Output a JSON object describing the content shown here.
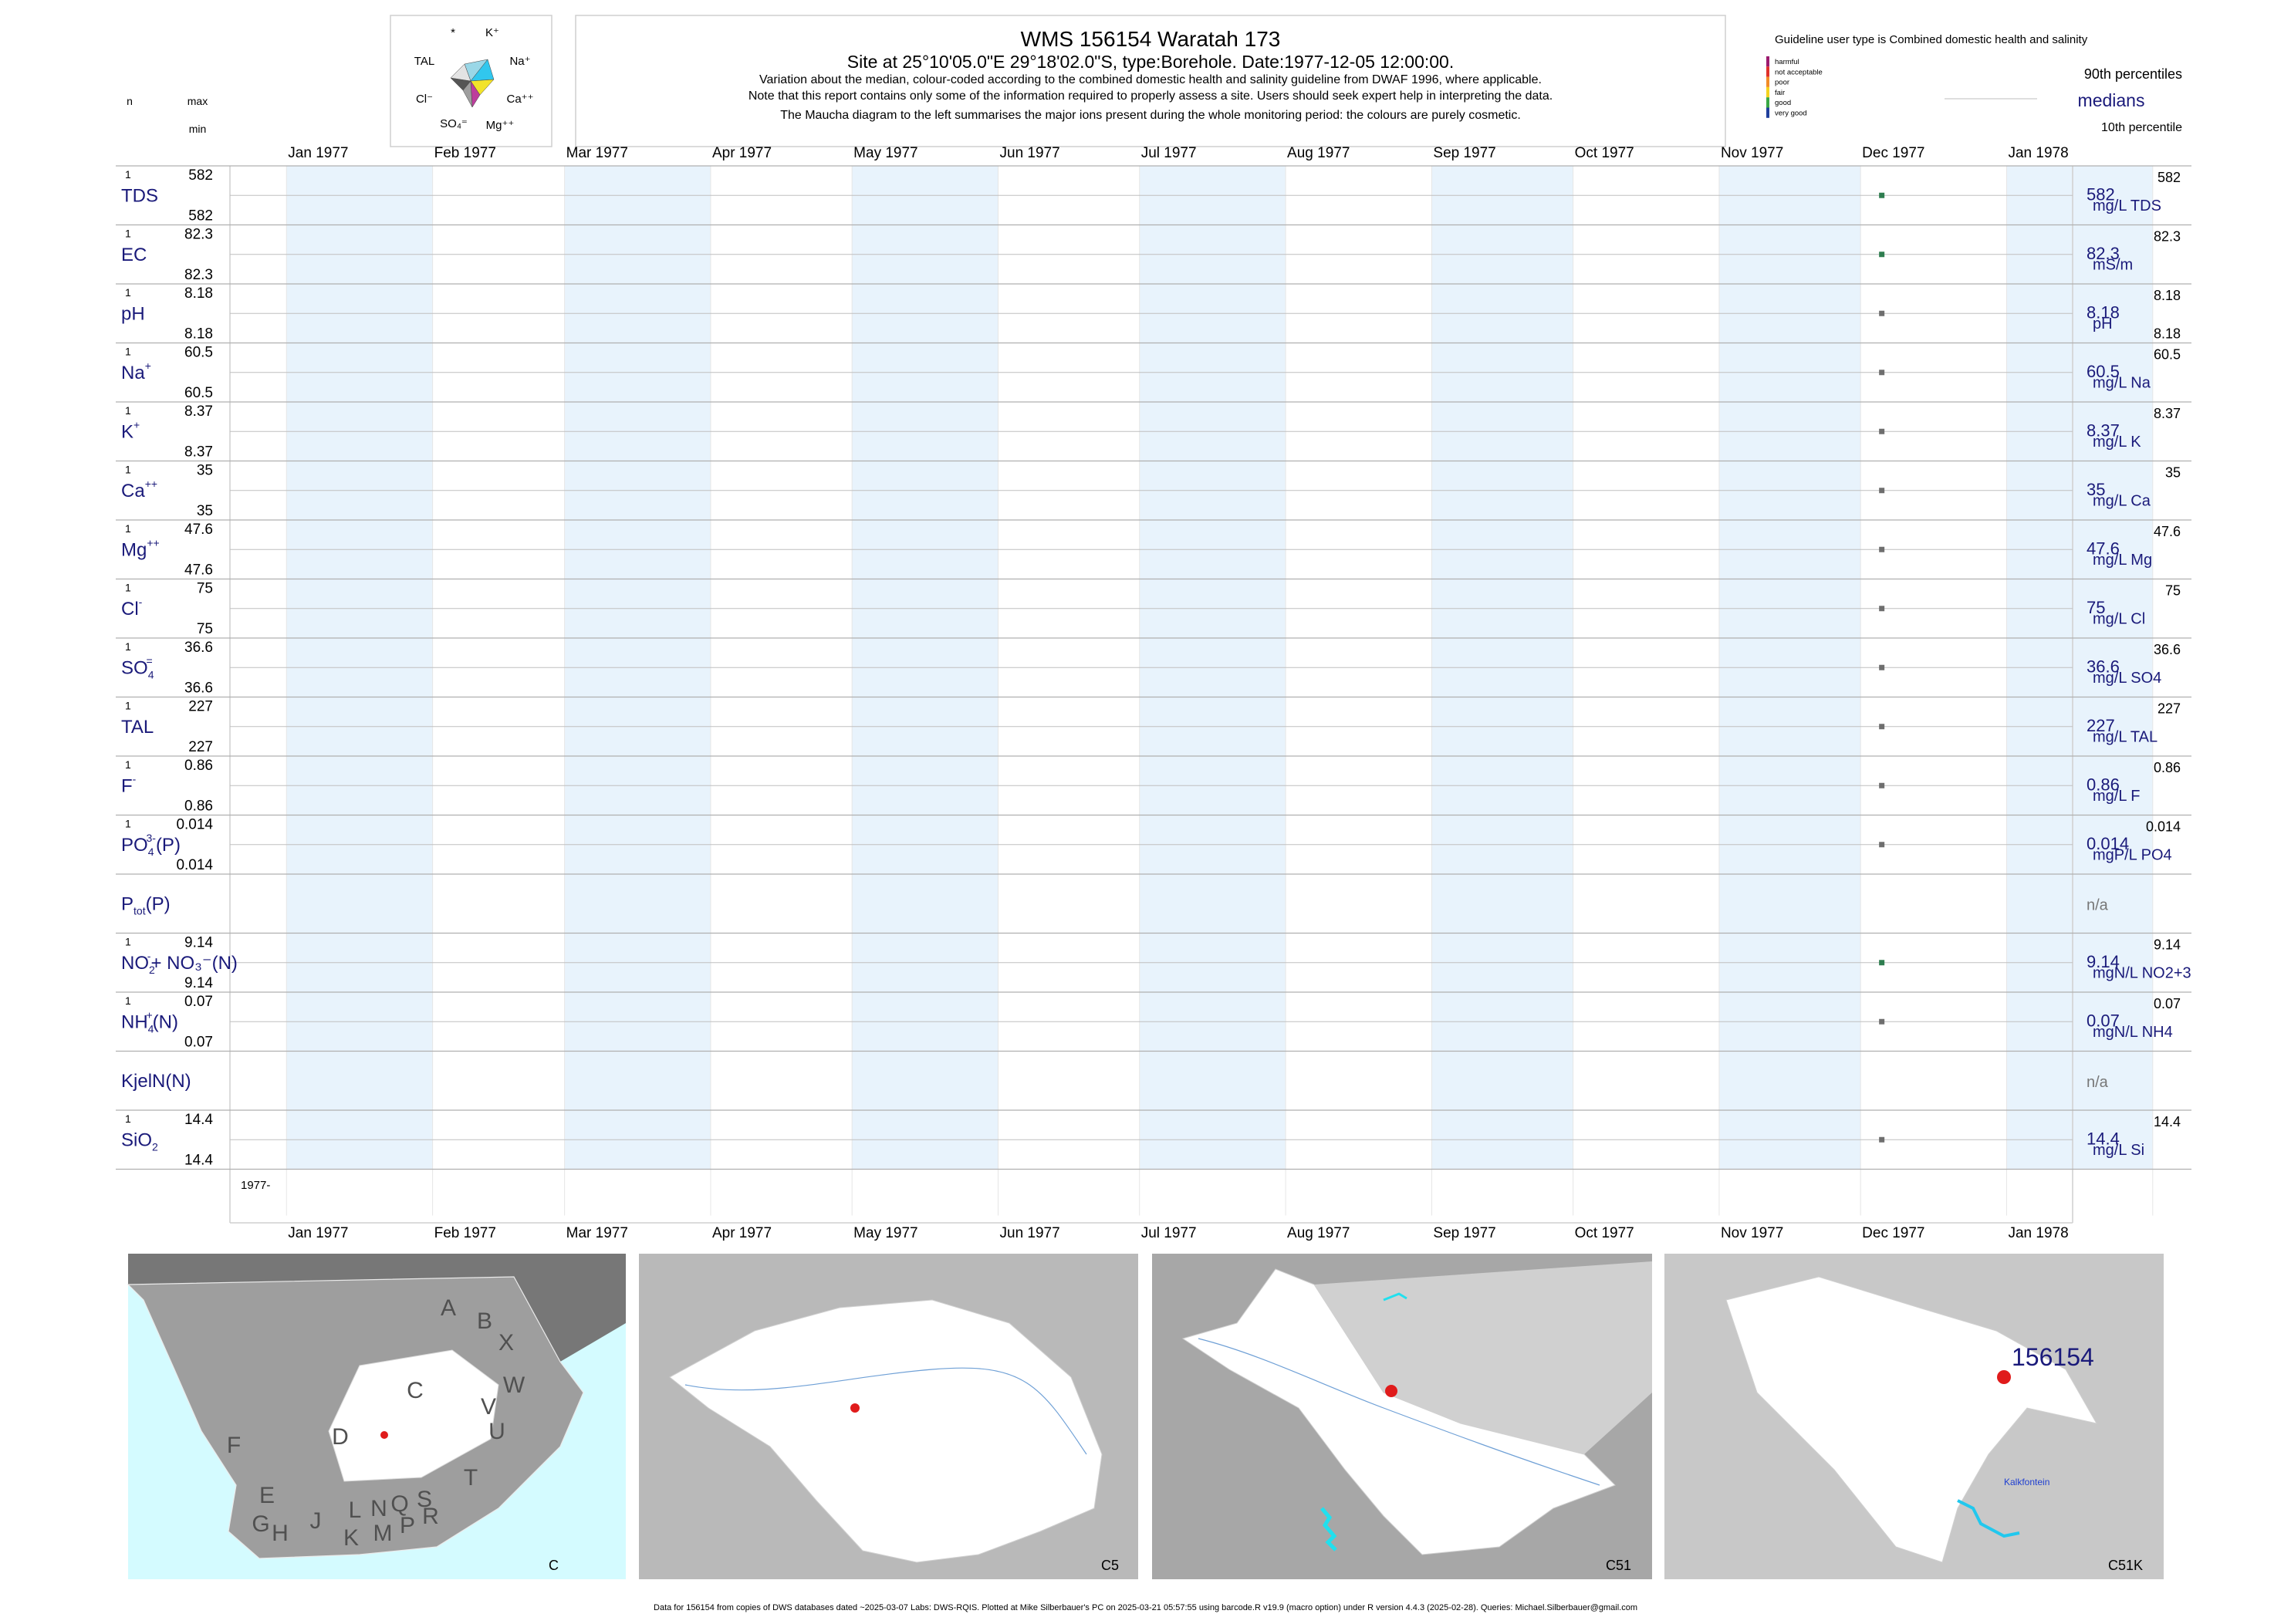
{
  "header": {
    "title": "WMS 156154  Waratah 173",
    "site_line": "Site at 25°10'05.0\"E 29°18'02.0\"S, type:Borehole. Date:1977-12-05 12:00:00.",
    "note_lines": [
      "Variation about the median,  colour-coded according to the combined domestic health and salinity guideline from DWAF 1996, where applicable.",
      "Note that this report contains only some of the information required to properly assess a site. Users should seek expert help in interpreting the data.",
      "The Maucha diagram to the left summarises the major ions present during the whole monitoring period: the colours are purely cosmetic."
    ],
    "col_n": "n",
    "col_max": "max",
    "col_min": "min"
  },
  "maucha": {
    "labels": [
      "*",
      "K⁺",
      "Na⁺",
      "Ca⁺⁺",
      "Mg⁺⁺",
      "SO₄⁼",
      "Cl⁻",
      "TAL"
    ]
  },
  "legend": {
    "guideline_title": "Guideline user type is Combined domestic health and salinity",
    "classes": [
      {
        "label": "harmful",
        "color": "#9c1b6f"
      },
      {
        "label": "not acceptable",
        "color": "#e0312b"
      },
      {
        "label": "poor",
        "color": "#f28c28"
      },
      {
        "label": "fair",
        "color": "#f5d31f"
      },
      {
        "label": "good",
        "color": "#39a845"
      },
      {
        "label": "very good",
        "color": "#1f3f9c"
      }
    ],
    "p90": "90th percentiles",
    "medians": "medians",
    "p10": "10th percentile"
  },
  "chart_data": {
    "type": "scatter",
    "x_range": [
      "1977-01",
      "1978-01"
    ],
    "month_labels": [
      "Jan 1977",
      "Feb 1977",
      "Mar 1977",
      "Apr 1977",
      "May 1977",
      "Jun 1977",
      "Jul 1977",
      "Aug 1977",
      "Sep 1977",
      "Oct 1977",
      "Nov 1977",
      "Dec 1977",
      "Jan 1978"
    ],
    "sample_date": "1977-12-05",
    "year_label": "1977-",
    "rows": [
      {
        "label": "TDS",
        "sup": "",
        "sub": "",
        "suffix": "",
        "n": "1",
        "max": "582",
        "min": "582",
        "value": "582",
        "unit": "mg/L TDS",
        "pmax": "582",
        "pmin": "",
        "status": "good"
      },
      {
        "label": "EC",
        "sup": "",
        "sub": "",
        "suffix": "",
        "n": "1",
        "max": "82.3",
        "min": "82.3",
        "value": "82.3",
        "unit": "mS/m",
        "pmax": "82.3",
        "pmin": "",
        "status": "good"
      },
      {
        "label": "pH",
        "sup": "",
        "sub": "",
        "suffix": "",
        "n": "1",
        "max": "8.18",
        "min": "8.18",
        "value": "8.18",
        "unit": "pH",
        "pmax": "8.18",
        "pmin": "8.18",
        "status": "neutral"
      },
      {
        "label": "Na",
        "sup": "+",
        "sub": "",
        "suffix": "",
        "n": "1",
        "max": "60.5",
        "min": "60.5",
        "value": "60.5",
        "unit": "mg/L Na",
        "pmax": "60.5",
        "pmin": "",
        "status": "neutral"
      },
      {
        "label": "K",
        "sup": "+",
        "sub": "",
        "suffix": "",
        "n": "1",
        "max": "8.37",
        "min": "8.37",
        "value": "8.37",
        "unit": "mg/L K",
        "pmax": "8.37",
        "pmin": "",
        "status": "neutral"
      },
      {
        "label": "Ca",
        "sup": "++",
        "sub": "",
        "suffix": "",
        "n": "1",
        "max": "35",
        "min": "35",
        "value": "35",
        "unit": "mg/L Ca",
        "pmax": "35",
        "pmin": "",
        "status": "neutral"
      },
      {
        "label": "Mg",
        "sup": "++",
        "sub": "",
        "suffix": "",
        "n": "1",
        "max": "47.6",
        "min": "47.6",
        "value": "47.6",
        "unit": "mg/L Mg",
        "pmax": "47.6",
        "pmin": "",
        "status": "neutral"
      },
      {
        "label": "Cl",
        "sup": "-",
        "sub": "",
        "suffix": "",
        "n": "1",
        "max": "75",
        "min": "75",
        "value": "75",
        "unit": "mg/L Cl",
        "pmax": "75",
        "pmin": "",
        "status": "neutral"
      },
      {
        "label": "SO",
        "sup": "=",
        "sub": "4",
        "suffix": "",
        "n": "1",
        "max": "36.6",
        "min": "36.6",
        "value": "36.6",
        "unit": "mg/L SO4",
        "pmax": "36.6",
        "pmin": "",
        "status": "neutral"
      },
      {
        "label": "TAL",
        "sup": "",
        "sub": "",
        "suffix": "",
        "n": "1",
        "max": "227",
        "min": "227",
        "value": "227",
        "unit": "mg/L TAL",
        "pmax": "227",
        "pmin": "",
        "status": "neutral"
      },
      {
        "label": "F",
        "sup": "-",
        "sub": "",
        "suffix": "",
        "n": "1",
        "max": "0.86",
        "min": "0.86",
        "value": "0.86",
        "unit": "mg/L F",
        "pmax": "0.86",
        "pmin": "",
        "status": "neutral"
      },
      {
        "label": "PO",
        "sup": "3-",
        "sub": "4",
        "suffix": "(P)",
        "n": "1",
        "max": "0.014",
        "min": "0.014",
        "value": "0.014",
        "unit": "mgP/L PO4",
        "pmax": "0.014",
        "pmin": "",
        "status": "neutral"
      },
      {
        "label": "P",
        "sup": "",
        "sub": "tot",
        "suffix": "(P)",
        "n": "",
        "max": "",
        "min": "",
        "value": "n/a",
        "unit": "",
        "pmax": "",
        "pmin": "",
        "status": "none"
      },
      {
        "label": "NO",
        "sup": "-",
        "sub": "2",
        "suffix": "+ NO₃⁻(N)",
        "n": "1",
        "max": "9.14",
        "min": "9.14",
        "value": "9.14",
        "unit": "mgN/L NO2+3",
        "pmax": "9.14",
        "pmin": "",
        "status": "good"
      },
      {
        "label": "NH",
        "sup": "+",
        "sub": "4",
        "suffix": "(N)",
        "n": "1",
        "max": "0.07",
        "min": "0.07",
        "value": "0.07",
        "unit": "mgN/L NH4",
        "pmax": "0.07",
        "pmin": "",
        "status": "neutral"
      },
      {
        "label": "KjelN(N)",
        "sup": "",
        "sub": "",
        "suffix": "",
        "n": "",
        "max": "",
        "min": "",
        "value": "n/a",
        "unit": "",
        "pmax": "",
        "pmin": "",
        "status": "none"
      },
      {
        "label": "SiO",
        "sup": "",
        "sub": "2",
        "suffix": "",
        "n": "1",
        "max": "14.4",
        "min": "14.4",
        "value": "14.4",
        "unit": "mg/L Si",
        "pmax": "14.4",
        "pmin": "",
        "status": "neutral"
      }
    ]
  },
  "maps": [
    {
      "caption": "C",
      "letters": [
        "A",
        "B",
        "X",
        "W",
        "C",
        "V",
        "U",
        "D",
        "T",
        "F",
        "E",
        "G",
        "H",
        "J",
        "L",
        "N",
        "Q",
        "S",
        "R",
        "K",
        "M",
        "P"
      ]
    },
    {
      "caption": "C5"
    },
    {
      "caption": "C51"
    },
    {
      "caption": "C51K",
      "site_label": "156154",
      "place_label": "Kalkfontein"
    }
  ],
  "footer": "Data for 156154 from copies of DWS databases dated ~2025-03-07 Labs: DWS-RQIS. Plotted at Mike Silberbauer's PC on 2025-03-21 05:57:55 using barcode.R v19.9 (macro option) under R version 4.4.3 (2025-02-28). Queries: Michael.Silberbauer@gmail.com",
  "colors": {
    "label_blue": "#1a1a7a",
    "stripe": "#e8f3fc",
    "good": "#2e7d4f",
    "neutral": "#6e6e6e",
    "water": "#d4fbff"
  }
}
